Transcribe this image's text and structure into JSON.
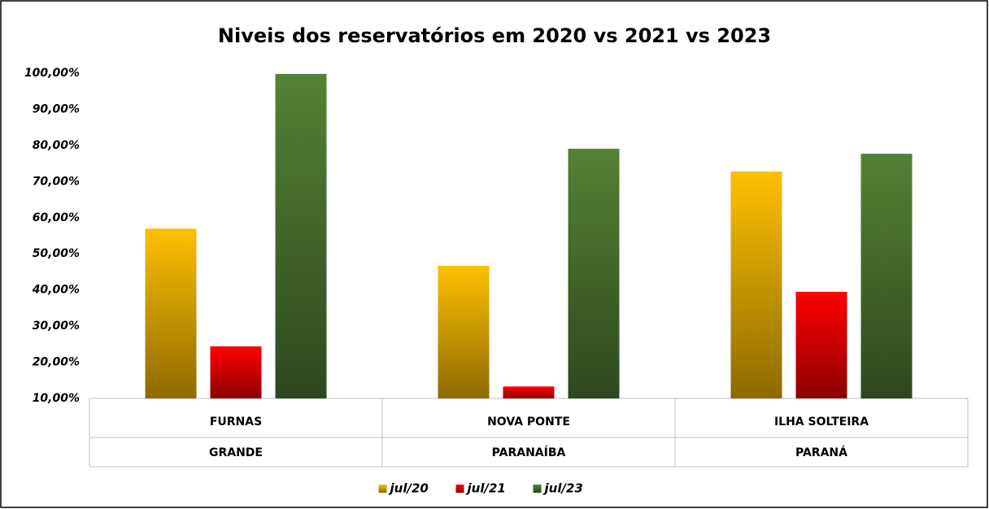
{
  "chart_data": {
    "type": "bar",
    "title": "Niveis dos reservatórios em 2020 vs 2021 vs 2023",
    "categories": [
      "FURNAS",
      "NOVA PONTE",
      "ILHA SOLTEIRA"
    ],
    "category_groups": [
      "GRANDE",
      "PARANAÍBA",
      "PARANÁ"
    ],
    "series": [
      {
        "name": "jul/20",
        "color": "#ffc000",
        "values": [
          57.0,
          46.7,
          72.8
        ]
      },
      {
        "name": "jul/21",
        "color": "#ff0000",
        "values": [
          24.4,
          13.3,
          39.5
        ]
      },
      {
        "name": "jul/23",
        "color": "#548235",
        "values": [
          99.8,
          79.1,
          77.7
        ]
      }
    ],
    "ylim": [
      10,
      100
    ],
    "yticks": [
      {
        "value": 10,
        "label": "10,00%"
      },
      {
        "value": 20,
        "label": "20,00%"
      },
      {
        "value": 30,
        "label": "30,00%"
      },
      {
        "value": 40,
        "label": "40,00%"
      },
      {
        "value": 50,
        "label": "50,00%"
      },
      {
        "value": 60,
        "label": "60,00%"
      },
      {
        "value": 70,
        "label": "70,00%"
      },
      {
        "value": 80,
        "label": "80,00%"
      },
      {
        "value": 90,
        "label": "90,00%"
      },
      {
        "value": 100,
        "label": "100,00%"
      }
    ],
    "grid": false,
    "legend": "bottom"
  }
}
